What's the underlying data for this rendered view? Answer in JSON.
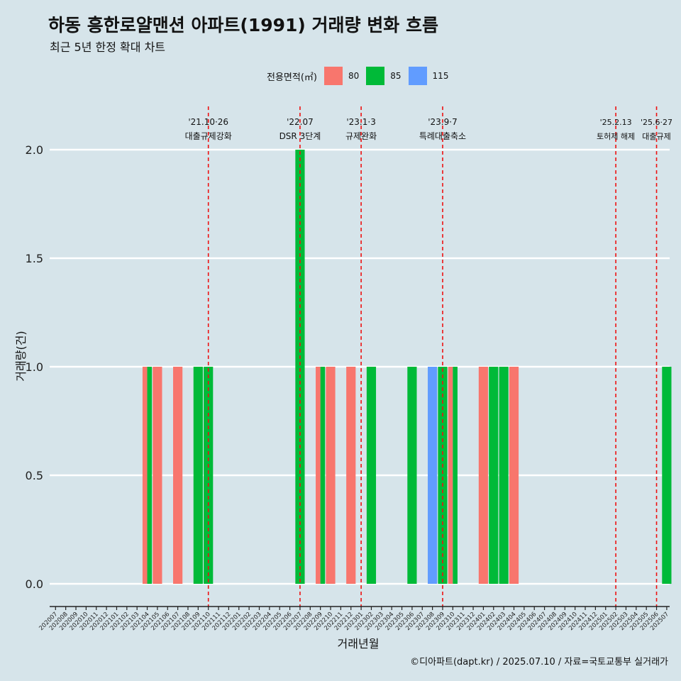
{
  "title": "하동 흥한로얄맨션 아파트(1991) 거래량 변화 흐름",
  "subtitle": "최근 5년 한정 확대 차트",
  "legend": {
    "title": "전용면적(㎡)",
    "items": [
      {
        "label": "80",
        "color": "#F8766D"
      },
      {
        "label": "85",
        "color": "#00BA38"
      },
      {
        "label": "115",
        "color": "#619CFF"
      }
    ]
  },
  "caption": "©디아파트(dapt.kr) / 2025.07.10 / 자료=국토교통부 실거래가",
  "chart_data": {
    "type": "bar",
    "xlabel": "거래년월",
    "ylabel": "거래량(건)",
    "ylim": [
      0,
      2.2
    ],
    "yticks": [
      "0.0",
      "0.5",
      "1.0",
      "1.5",
      "2.0"
    ],
    "categories": [
      "202007",
      "202008",
      "202009",
      "202010",
      "202011",
      "202012",
      "202101",
      "202102",
      "202103",
      "202104",
      "202105",
      "202106",
      "202107",
      "202108",
      "202109",
      "202110",
      "202111",
      "202112",
      "202201",
      "202202",
      "202203",
      "202204",
      "202205",
      "202206",
      "202207",
      "202208",
      "202209",
      "202210",
      "202211",
      "202212",
      "202301",
      "202302",
      "202303",
      "202304",
      "202305",
      "202306",
      "202307",
      "202308",
      "202309",
      "202310",
      "202311",
      "202312",
      "202401",
      "202402",
      "202403",
      "202404",
      "202405",
      "202406",
      "202407",
      "202408",
      "202409",
      "202410",
      "202411",
      "202412",
      "202501",
      "202502",
      "202503",
      "202504",
      "202505",
      "202506",
      "202507"
    ],
    "series": [
      {
        "name": "80",
        "color": "#F8766D",
        "values": {
          "202104": 1,
          "202105": 1,
          "202107": 1,
          "202209": 1,
          "202210": 1,
          "202212": 1,
          "202310": 1,
          "202401": 1,
          "202404": 1
        }
      },
      {
        "name": "85",
        "color": "#00BA38",
        "values": {
          "202104": 1,
          "202109": 1,
          "202110": 1,
          "202207": 2,
          "202209": 1,
          "202302": 1,
          "202306": 1,
          "202309": 1,
          "202310": 1,
          "202402": 1,
          "202403": 1,
          "202507": 1
        }
      },
      {
        "name": "115",
        "color": "#619CFF",
        "values": {
          "202308": 1
        }
      }
    ],
    "annotations": [
      {
        "month": "202110",
        "date": "'21.10·26",
        "text": "대출규제강화"
      },
      {
        "month": "202207",
        "date": "'22.07",
        "text": "DSR 3단계"
      },
      {
        "month": "202301",
        "date": "'23.1·3",
        "text": "규제완화"
      },
      {
        "month": "202309",
        "date": "'23.9·7",
        "text": "특례대출축소"
      },
      {
        "month": "202502",
        "date": "'25.2.13",
        "text": "토허제 해제"
      },
      {
        "month": "202506",
        "date": "'25.6·27",
        "text": "대출규제"
      }
    ]
  }
}
